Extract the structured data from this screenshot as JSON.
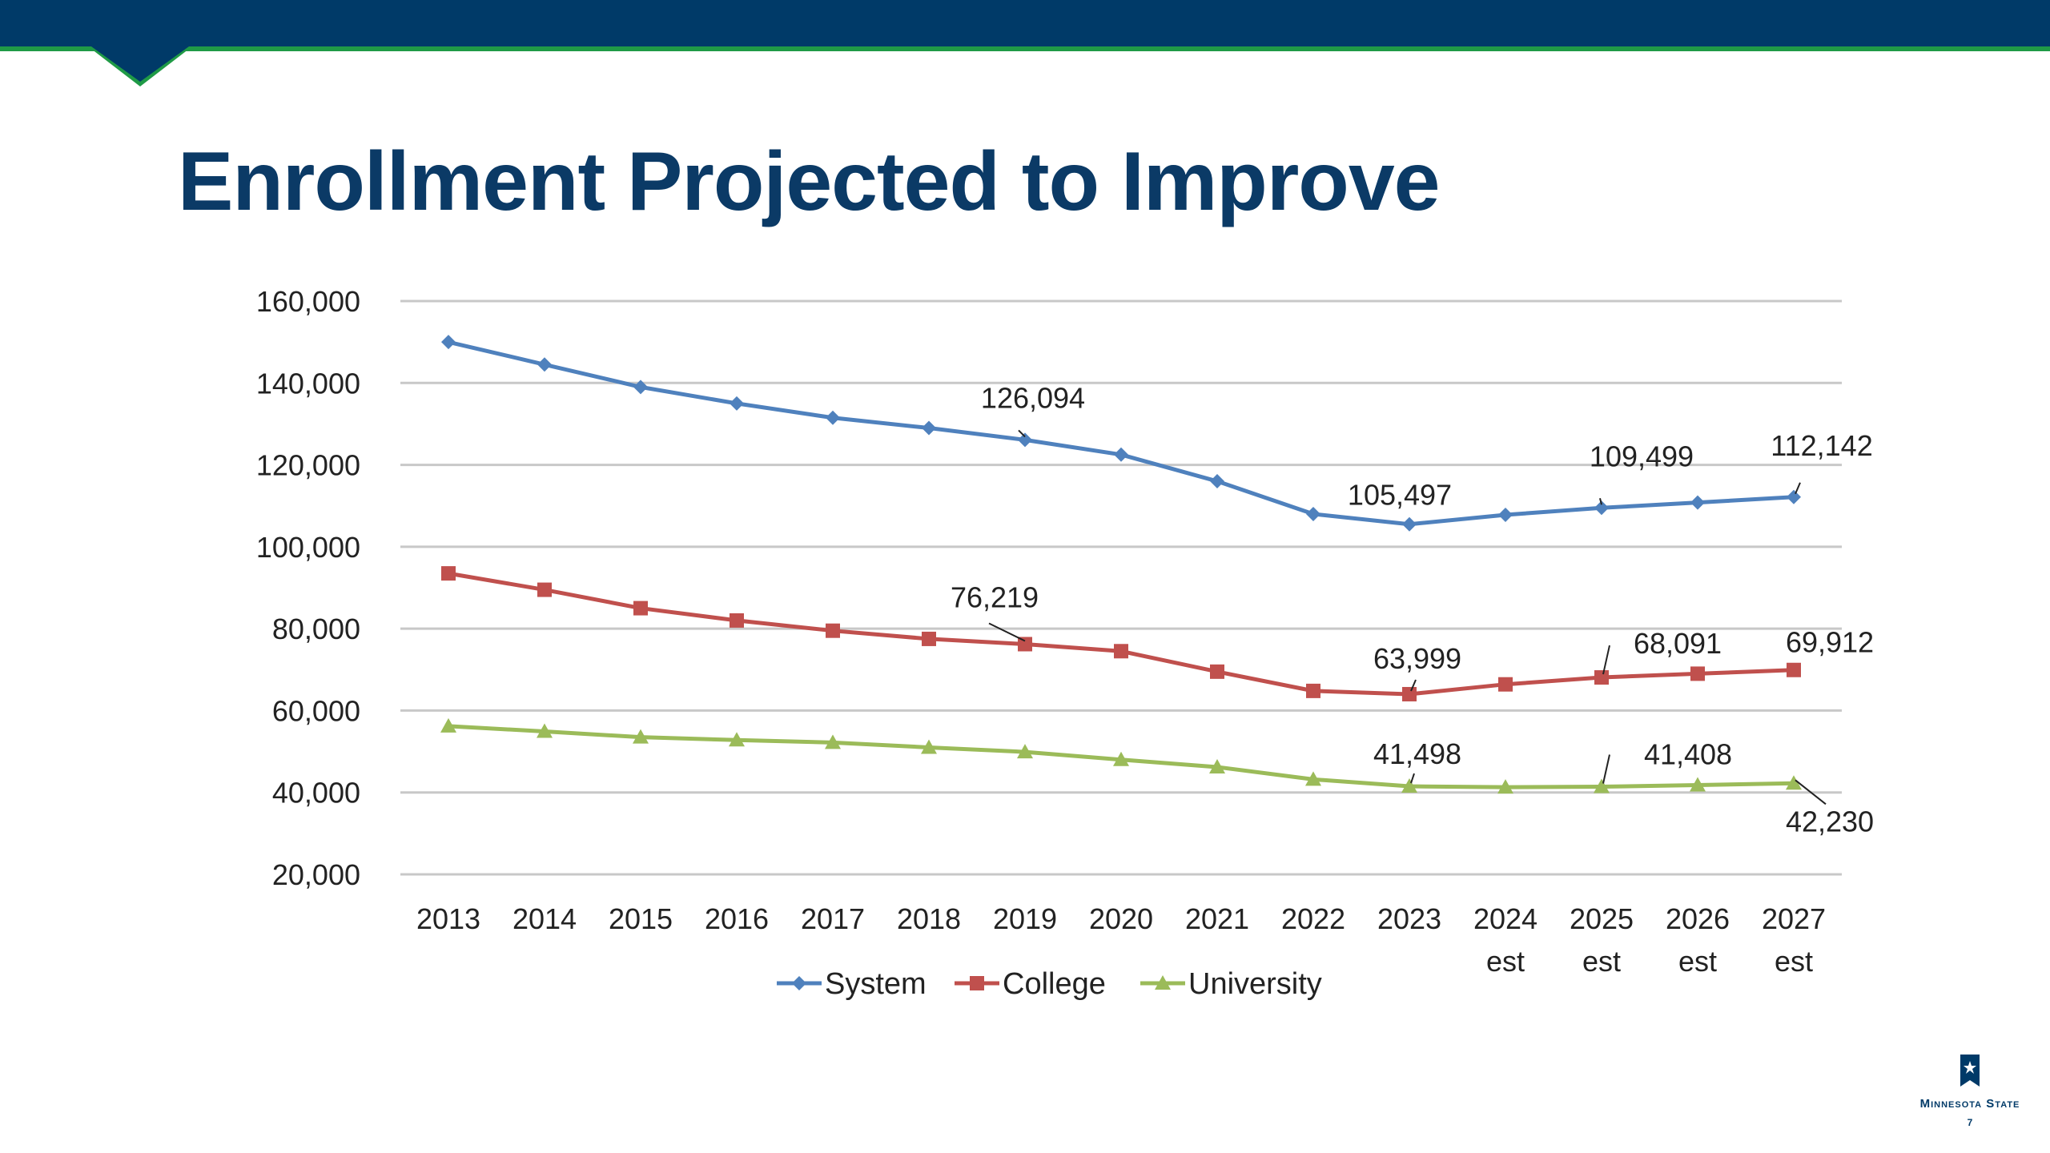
{
  "slide": {
    "title": "Enrollment Projected to Improve",
    "logo_text": "Minnesota State",
    "page_number": "7"
  },
  "colors": {
    "header": "#003a68",
    "header_accent": "#1f9a46",
    "title": "#0b3a66",
    "system": "#4f81bd",
    "college": "#c0504d",
    "university": "#9bbb59",
    "grid": "#c8c8c8"
  },
  "icons": [
    "header-notch-icon",
    "minnesota-state-logo-icon"
  ],
  "chart_data": {
    "type": "line",
    "categories": [
      "2013",
      "2014",
      "2015",
      "2016",
      "2017",
      "2018",
      "2019",
      "2020",
      "2021",
      "2022",
      "2023",
      "2024\nest",
      "2025\nest",
      "2026\nest",
      "2027\nest"
    ],
    "series": [
      {
        "name": "System",
        "marker": "diamond",
        "values": [
          150000,
          144500,
          139000,
          135000,
          131500,
          129000,
          126094,
          122500,
          116000,
          108000,
          105497,
          107800,
          109499,
          110800,
          112142
        ]
      },
      {
        "name": "College",
        "marker": "square",
        "values": [
          93500,
          89500,
          85000,
          82000,
          79500,
          77500,
          76219,
          74500,
          69500,
          64800,
          63999,
          66400,
          68091,
          69000,
          69912
        ]
      },
      {
        "name": "University",
        "marker": "triangle",
        "values": [
          56200,
          54900,
          53500,
          52800,
          52200,
          51000,
          49900,
          48000,
          46200,
          43200,
          41498,
          41300,
          41408,
          41800,
          42230
        ]
      }
    ],
    "data_labels": [
      {
        "series": 0,
        "index": 6,
        "text": "126,094"
      },
      {
        "series": 0,
        "index": 10,
        "text": "105,497"
      },
      {
        "series": 0,
        "index": 12,
        "text": "109,499"
      },
      {
        "series": 0,
        "index": 14,
        "text": "112,142"
      },
      {
        "series": 1,
        "index": 6,
        "text": "76,219"
      },
      {
        "series": 1,
        "index": 10,
        "text": "63,999"
      },
      {
        "series": 1,
        "index": 12,
        "text": "68,091"
      },
      {
        "series": 1,
        "index": 14,
        "text": "69,912"
      },
      {
        "series": 2,
        "index": 10,
        "text": "41,498"
      },
      {
        "series": 2,
        "index": 12,
        "text": "41,408"
      },
      {
        "series": 2,
        "index": 14,
        "text": "42,230"
      }
    ],
    "y_ticks": [
      "20,000",
      "40,000",
      "60,000",
      "80,000",
      "100,000",
      "120,000",
      "140,000",
      "160,000"
    ],
    "ylim": [
      20000,
      160000
    ],
    "grid": true,
    "legend_position": "bottom"
  }
}
